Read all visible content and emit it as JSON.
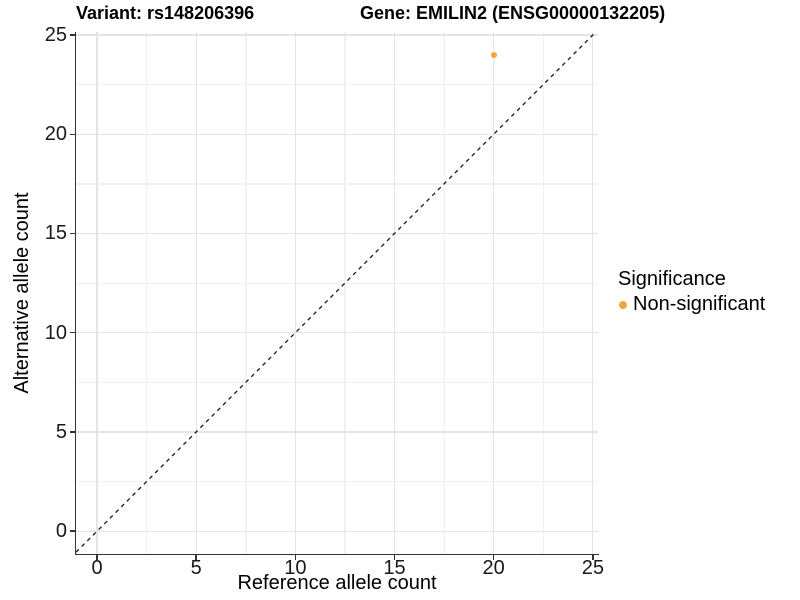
{
  "chart_data": {
    "type": "scatter",
    "title_left": "Variant: rs148206396",
    "title_right": "Gene: EMILIN2 (ENSG00000132205)",
    "xlabel": "Reference allele count",
    "ylabel": "Alternative allele count",
    "xticks": [
      0,
      5,
      10,
      15,
      20,
      25
    ],
    "yticks": [
      0,
      5,
      10,
      15,
      20,
      25
    ],
    "xlim": [
      -1.06,
      25.26
    ],
    "ylim": [
      -1.15,
      25.15
    ],
    "grid": {
      "major": true,
      "minor": true
    },
    "identity_line": {
      "style": "dashed",
      "color": "#1a1a1a",
      "from": [
        -1.06,
        -1.06
      ],
      "to": [
        25.15,
        25.15
      ]
    },
    "series": [
      {
        "name": "Non-significant",
        "color": "#F8A241",
        "points": [
          {
            "x": 20,
            "y": 24
          }
        ]
      }
    ],
    "legend": {
      "title": "Significance",
      "position": "right"
    }
  }
}
